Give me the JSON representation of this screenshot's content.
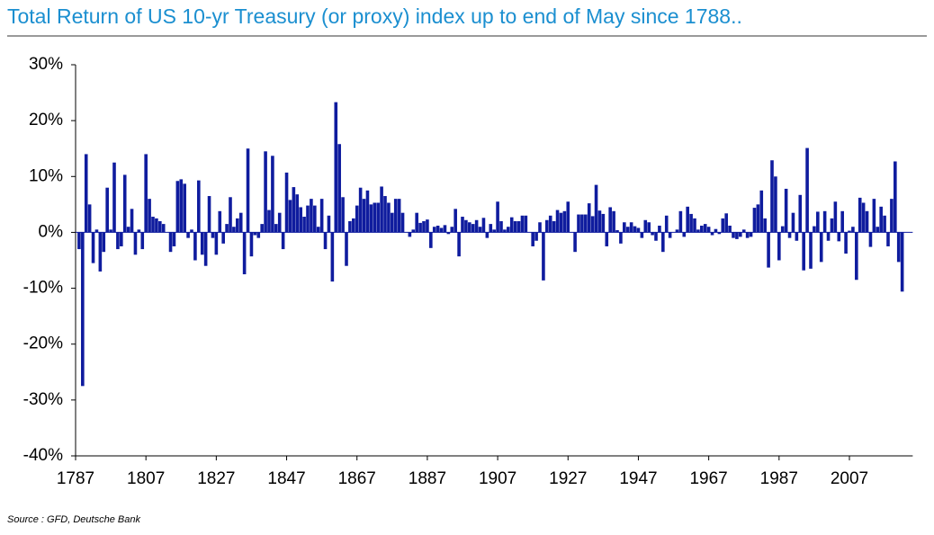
{
  "chart_data": {
    "type": "bar",
    "title": "Total Return of US 10-yr Treasury (or proxy) index up to end of May since 1788..",
    "source": "Source : GFD, Deutsche Bank",
    "color": "#0f1c9e",
    "x": [
      1788,
      1789,
      1790,
      1791,
      1792,
      1793,
      1794,
      1795,
      1796,
      1797,
      1798,
      1799,
      1800,
      1801,
      1802,
      1803,
      1804,
      1805,
      1806,
      1807,
      1808,
      1809,
      1810,
      1811,
      1812,
      1813,
      1814,
      1815,
      1816,
      1817,
      1818,
      1819,
      1820,
      1821,
      1822,
      1823,
      1824,
      1825,
      1826,
      1827,
      1828,
      1829,
      1830,
      1831,
      1832,
      1833,
      1834,
      1835,
      1836,
      1837,
      1838,
      1839,
      1840,
      1841,
      1842,
      1843,
      1844,
      1845,
      1846,
      1847,
      1848,
      1849,
      1850,
      1851,
      1852,
      1853,
      1854,
      1855,
      1856,
      1857,
      1858,
      1859,
      1860,
      1861,
      1862,
      1863,
      1864,
      1865,
      1866,
      1867,
      1868,
      1869,
      1870,
      1871,
      1872,
      1873,
      1874,
      1875,
      1876,
      1877,
      1878,
      1879,
      1880,
      1881,
      1882,
      1883,
      1884,
      1885,
      1886,
      1887,
      1888,
      1889,
      1890,
      1891,
      1892,
      1893,
      1894,
      1895,
      1896,
      1897,
      1898,
      1899,
      1900,
      1901,
      1902,
      1903,
      1904,
      1905,
      1906,
      1907,
      1908,
      1909,
      1910,
      1911,
      1912,
      1913,
      1914,
      1915,
      1916,
      1917,
      1918,
      1919,
      1920,
      1921,
      1922,
      1923,
      1924,
      1925,
      1926,
      1927,
      1928,
      1929,
      1930,
      1931,
      1932,
      1933,
      1934,
      1935,
      1936,
      1937,
      1938,
      1939,
      1940,
      1941,
      1942,
      1943,
      1944,
      1945,
      1946,
      1947,
      1948,
      1949,
      1950,
      1951,
      1952,
      1953,
      1954,
      1955,
      1956,
      1957,
      1958,
      1959,
      1960,
      1961,
      1962,
      1963,
      1964,
      1965,
      1966,
      1967,
      1968,
      1969,
      1970,
      1971,
      1972,
      1973,
      1974,
      1975,
      1976,
      1977,
      1978,
      1979,
      1980,
      1981,
      1982,
      1983,
      1984,
      1985,
      1986,
      1987,
      1988,
      1989,
      1990,
      1991,
      1992,
      1993,
      1994,
      1995,
      1996,
      1997,
      1998,
      1999,
      2000,
      2001,
      2002,
      2003,
      2004,
      2005,
      2006,
      2007,
      2008,
      2009,
      2010,
      2011,
      2012,
      2013,
      2014,
      2015,
      2016,
      2017,
      2018,
      2019,
      2020,
      2021,
      2022
    ],
    "values": [
      -3,
      -27.5,
      14,
      5,
      -5.5,
      0.5,
      -7,
      -3.5,
      8,
      0.5,
      12.5,
      -3,
      -2.5,
      10.3,
      1,
      4.2,
      -4,
      0.5,
      -3,
      14,
      6,
      2.8,
      2.5,
      2,
      1.5,
      0,
      -3.5,
      -2.5,
      9.2,
      9.5,
      8.7,
      -1,
      0.5,
      -5,
      9.3,
      -4,
      -6,
      6.5,
      -1,
      -4,
      3.8,
      -2,
      1.5,
      6.3,
      1,
      2.5,
      3.5,
      -7.5,
      15,
      -4.3,
      -0.5,
      -1,
      1.5,
      14.5,
      4,
      13.7,
      1.5,
      3.5,
      -3,
      10.7,
      5.8,
      8.1,
      6.8,
      4.5,
      2.8,
      4.8,
      6,
      4.8,
      1,
      6,
      -3,
      3,
      -8.8,
      23.3,
      15.8,
      6.3,
      -6,
      2,
      2.5,
      4.8,
      8,
      6,
      7.5,
      5,
      5.3,
      5.3,
      8.2,
      6.5,
      5.3,
      3.5,
      6,
      6,
      3.5,
      0,
      -0.8,
      0.5,
      3.5,
      1.7,
      2,
      2.3,
      -2.8,
      1,
      1.2,
      0.8,
      1.3,
      -0.3,
      1,
      4.2,
      -4.3,
      2.8,
      2.2,
      1.8,
      1.5,
      2.2,
      1,
      2.6,
      -1,
      1.5,
      0.5,
      5.5,
      2,
      0.5,
      1,
      2.7,
      2,
      2,
      3,
      3,
      0,
      -2.5,
      -1.5,
      1.8,
      -8.6,
      2.2,
      3,
      2,
      4,
      3.5,
      3.8,
      5.5,
      0,
      -3.5,
      3.2,
      3.2,
      3.2,
      5.2,
      2.9,
      8.5,
      3.9,
      3.3,
      -2.5,
      4.5,
      3.8,
      0.4,
      -2,
      1.8,
      1,
      1.8,
      1.1,
      0.8,
      -1,
      2.2,
      1.8,
      -0.5,
      -1.5,
      1.2,
      -3.5,
      3,
      -1,
      0,
      0.5,
      3.8,
      -0.8,
      4.6,
      3.3,
      2.5,
      0.5,
      1.2,
      1.5,
      1,
      -0.5,
      0.6,
      -0.3,
      2.5,
      3.4,
      1.2,
      -1,
      -1.2,
      -0.8,
      0.5,
      -1,
      -0.8,
      4.4,
      5,
      7.5,
      2.5,
      -6.3,
      12.9,
      10,
      -5,
      1.1,
      7.8,
      -1,
      3.5,
      -1.5,
      6.7,
      -6.8,
      15.1,
      -6.5,
      1.1,
      3.7,
      -5.3,
      3.8,
      -1.5,
      2.5,
      5.5,
      -1.6,
      3.8,
      -3.8,
      0.3,
      1,
      -8.5,
      6.2,
      5.3,
      3.8,
      -2.6,
      6,
      1,
      4.6,
      3,
      -2.5,
      6,
      12.7,
      -5.3,
      -10.6
    ],
    "xlim": [
      1787,
      2025
    ],
    "xticks": [
      1787,
      1807,
      1827,
      1847,
      1867,
      1887,
      1907,
      1927,
      1947,
      1967,
      1987,
      2007
    ],
    "ylim": [
      -40,
      30
    ],
    "yticks": [
      {
        "value": -40,
        "label": "-40%"
      },
      {
        "value": -30,
        "label": "-30%"
      },
      {
        "value": -20,
        "label": "-20%"
      },
      {
        "value": -10,
        "label": "-10%"
      },
      {
        "value": 0,
        "label": "0%"
      },
      {
        "value": 10,
        "label": "10%"
      },
      {
        "value": 20,
        "label": "20%"
      },
      {
        "value": 30,
        "label": "30%"
      }
    ]
  }
}
